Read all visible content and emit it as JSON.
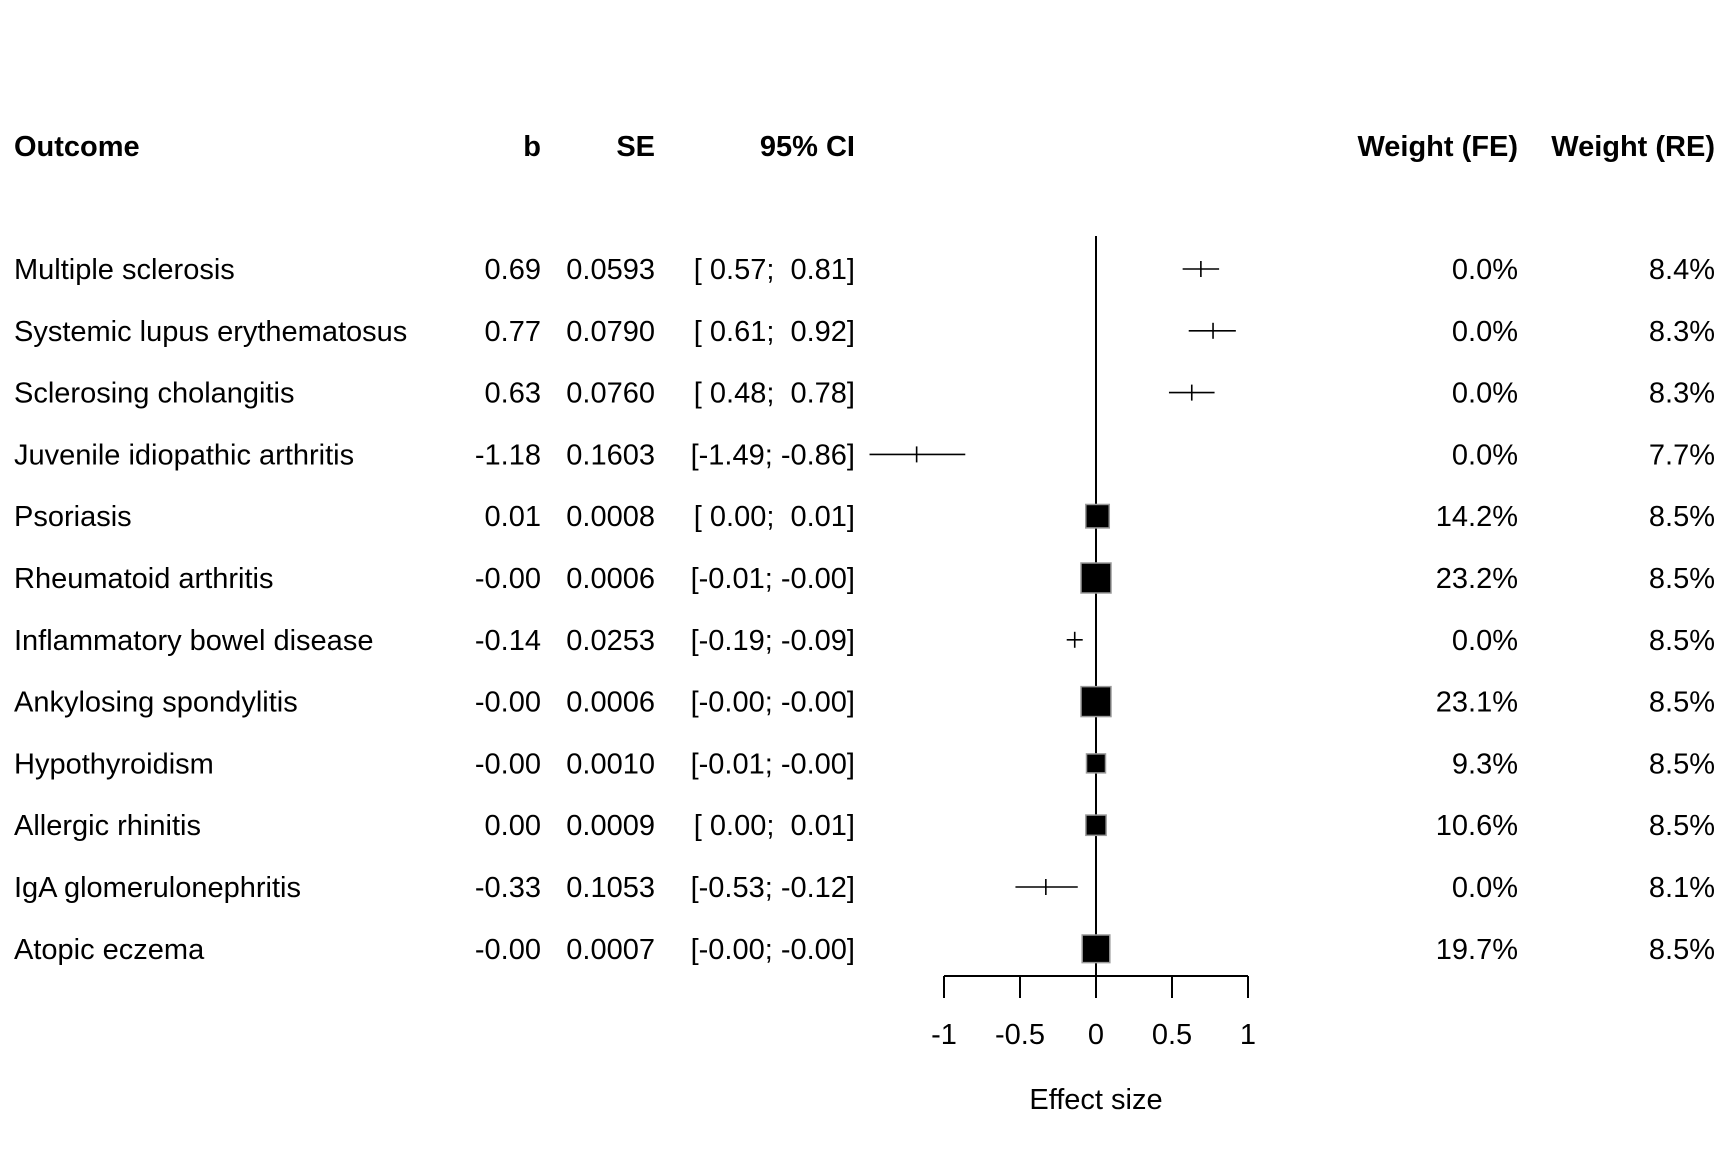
{
  "headers": {
    "outcome": "Outcome",
    "b": "b",
    "se": "SE",
    "ci": "95% CI",
    "weight_fe": "Weight (FE)",
    "weight_re": "Weight (RE)"
  },
  "rows": [
    {
      "outcome": "Multiple sclerosis",
      "b": "0.69",
      "se": "0.0593",
      "ci": "[ 0.57;  0.81]",
      "weight_fe": "0.0%",
      "weight_re": "8.4%"
    },
    {
      "outcome": "Systemic lupus erythematosus",
      "b": "0.77",
      "se": "0.0790",
      "ci": "[ 0.61;  0.92]",
      "weight_fe": "0.0%",
      "weight_re": "8.3%"
    },
    {
      "outcome": "Sclerosing cholangitis",
      "b": "0.63",
      "se": "0.0760",
      "ci": "[ 0.48;  0.78]",
      "weight_fe": "0.0%",
      "weight_re": "8.3%"
    },
    {
      "outcome": "Juvenile idiopathic arthritis",
      "b": "-1.18",
      "se": "0.1603",
      "ci": "[-1.49; -0.86]",
      "weight_fe": "0.0%",
      "weight_re": "7.7%"
    },
    {
      "outcome": "Psoriasis",
      "b": "0.01",
      "se": "0.0008",
      "ci": "[ 0.00;  0.01]",
      "weight_fe": "14.2%",
      "weight_re": "8.5%"
    },
    {
      "outcome": "Rheumatoid arthritis",
      "b": "-0.00",
      "se": "0.0006",
      "ci": "[-0.01; -0.00]",
      "weight_fe": "23.2%",
      "weight_re": "8.5%"
    },
    {
      "outcome": "Inflammatory bowel disease",
      "b": "-0.14",
      "se": "0.0253",
      "ci": "[-0.19; -0.09]",
      "weight_fe": "0.0%",
      "weight_re": "8.5%"
    },
    {
      "outcome": "Ankylosing spondylitis",
      "b": "-0.00",
      "se": "0.0006",
      "ci": "[-0.00; -0.00]",
      "weight_fe": "23.1%",
      "weight_re": "8.5%"
    },
    {
      "outcome": "Hypothyroidism",
      "b": "-0.00",
      "se": "0.0010",
      "ci": "[-0.01; -0.00]",
      "weight_fe": "9.3%",
      "weight_re": "8.5%"
    },
    {
      "outcome": "Allergic rhinitis",
      "b": "0.00",
      "se": "0.0009",
      "ci": "[ 0.00;  0.01]",
      "weight_fe": "10.6%",
      "weight_re": "8.5%"
    },
    {
      "outcome": "IgA glomerulonephritis",
      "b": "-0.33",
      "se": "0.1053",
      "ci": "[-0.53; -0.12]",
      "weight_fe": "0.0%",
      "weight_re": "8.1%"
    },
    {
      "outcome": "Atopic eczema",
      "b": "-0.00",
      "se": "0.0007",
      "ci": "[-0.00; -0.00]",
      "weight_fe": "19.7%",
      "weight_re": "8.5%"
    }
  ],
  "chart_data": {
    "type": "scatter",
    "subtype": "forest-plot",
    "xlabel": "Effect size",
    "xlim": [
      -1,
      1
    ],
    "xticks": [
      -1,
      -0.5,
      0,
      0.5,
      1
    ],
    "xtick_labels": [
      "-1",
      "-0.5",
      "0",
      "0.5",
      "1"
    ],
    "reference_line": 0,
    "series": [
      {
        "categories": [
          "Multiple sclerosis",
          "Systemic lupus erythematosus",
          "Sclerosing cholangitis",
          "Juvenile idiopathic arthritis",
          "Psoriasis",
          "Rheumatoid arthritis",
          "Inflammatory bowel disease",
          "Ankylosing spondylitis",
          "Hypothyroidism",
          "Allergic rhinitis",
          "IgA glomerulonephritis",
          "Atopic eczema"
        ],
        "estimate": [
          0.69,
          0.77,
          0.63,
          -1.18,
          0.01,
          -0.0,
          -0.14,
          -0.0,
          -0.0,
          0.0,
          -0.33,
          -0.0
        ],
        "ci_lower": [
          0.57,
          0.61,
          0.48,
          -1.49,
          0.0,
          -0.01,
          -0.19,
          -0.0,
          -0.01,
          0.0,
          -0.53,
          -0.0
        ],
        "ci_upper": [
          0.81,
          0.92,
          0.78,
          -0.86,
          0.01,
          -0.0,
          -0.09,
          -0.0,
          -0.0,
          0.01,
          -0.12,
          -0.0
        ],
        "weight_fe_pct": [
          0.0,
          0.0,
          0.0,
          0.0,
          14.2,
          23.2,
          0.0,
          23.1,
          9.3,
          10.6,
          0.0,
          19.7
        ]
      }
    ],
    "colors": {
      "marker": "#000000",
      "marker_border": "#9a9a9a",
      "line": "#000000"
    }
  }
}
